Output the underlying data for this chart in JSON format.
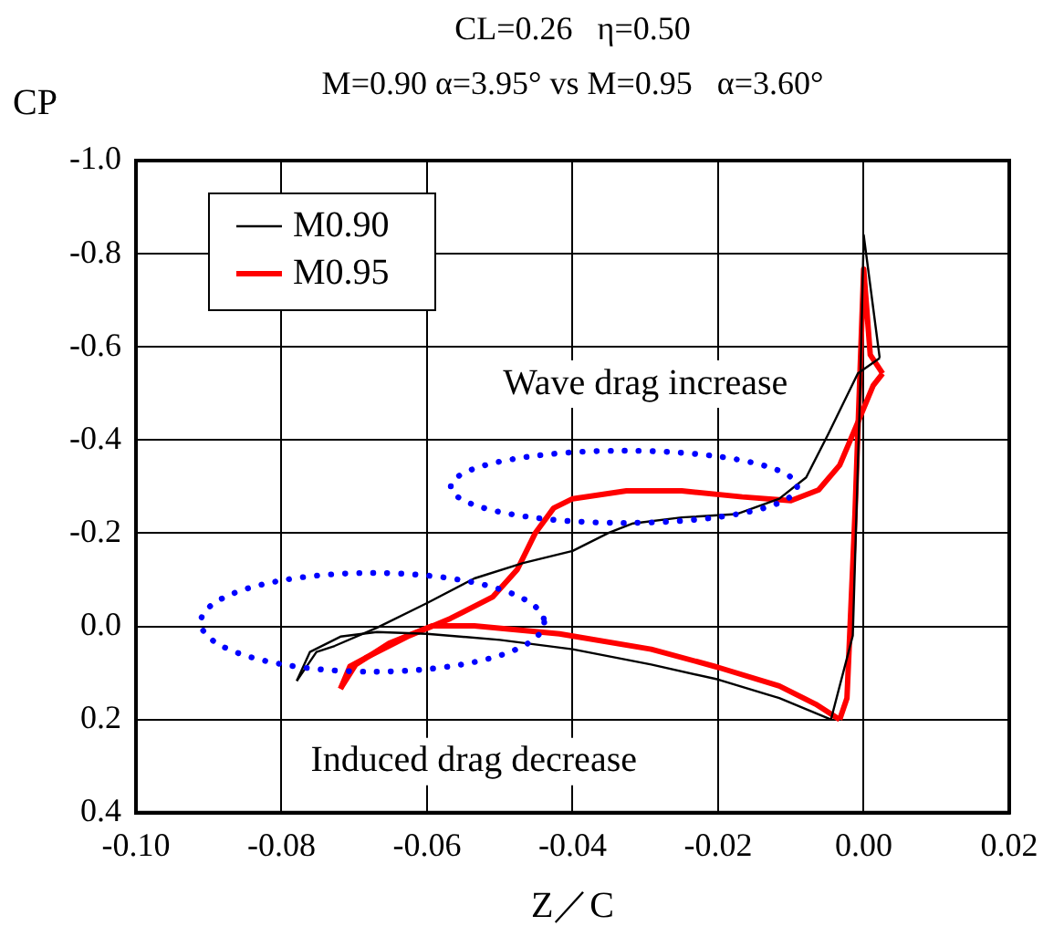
{
  "chart_data": {
    "type": "line",
    "title": "CL=0.26   η=0.50",
    "subtitle": "M=0.90 α=3.95° vs M=0.95   α=3.60°",
    "xlabel": "Z／C",
    "ylabel": "CP",
    "xlim": [
      -0.1,
      0.02
    ],
    "xticks": [
      {
        "value": -0.1,
        "label": "-0.10"
      },
      {
        "value": -0.08,
        "label": "-0.08"
      },
      {
        "value": -0.06,
        "label": "-0.06"
      },
      {
        "value": -0.04,
        "label": "-0.04"
      },
      {
        "value": -0.02,
        "label": "-0.02"
      },
      {
        "value": 0,
        "label": "0.00"
      },
      {
        "value": 0.02,
        "label": "0.02"
      }
    ],
    "ylim": [
      0.4,
      -1.0
    ],
    "yticks": [
      {
        "value": -1.0,
        "label": "-1.0"
      },
      {
        "value": -0.8,
        "label": "-0.8"
      },
      {
        "value": -0.6,
        "label": "-0.6"
      },
      {
        "value": -0.4,
        "label": "-0.4"
      },
      {
        "value": -0.2,
        "label": "-0.2"
      },
      {
        "value": 0,
        "label": "0.0"
      },
      {
        "value": 0.2,
        "label": "0.2"
      },
      {
        "value": 0.4,
        "label": "0.4"
      }
    ],
    "grid": true,
    "legend": "top left",
    "marker": "none",
    "line_style": "solid",
    "annotations": [
      "Wave drag increase",
      "Induced drag decrease"
    ],
    "series": [
      {
        "name": "M0.90",
        "color": "#000000",
        "x": [
          0.0022,
          -0.0008,
          -0.0049,
          -0.0079,
          -0.0116,
          -0.0175,
          -0.025,
          -0.0317,
          -0.035,
          -0.04,
          -0.0468,
          -0.0535,
          -0.06,
          -0.0669,
          -0.0727,
          -0.0752,
          -0.0779
        ],
        "values": [
          -0.576,
          -0.543,
          -0.412,
          -0.32,
          -0.274,
          -0.241,
          -0.234,
          -0.221,
          -0.201,
          -0.162,
          -0.136,
          -0.103,
          -0.05,
          0.003,
          0.042,
          0.055,
          0.117
        ]
      },
      {
        "color": "#000000",
        "x": [
          -0.0779,
          -0.0761,
          -0.0719,
          -0.0669,
          -0.06,
          -0.05,
          -0.04,
          -0.0292,
          -0.02,
          -0.0116,
          -0.0045
        ],
        "values": [
          0.117,
          0.055,
          0.022,
          0.012,
          0.016,
          0.029,
          0.049,
          0.082,
          0.114,
          0.154,
          0.2
        ]
      },
      {
        "color": "#000000",
        "x": [
          -0.0045,
          -0.0015,
          -0.0005,
          0,
          0.0022
        ],
        "values": [
          0.2,
          0.02,
          -0.5,
          -0.84,
          -0.576
        ]
      },
      {
        "name": "M0.95",
        "color": "#ff0000",
        "x": [
          0.0026,
          0.0013,
          -0.0008,
          -0.0033,
          -0.0062,
          -0.01,
          -0.0167,
          -0.025,
          -0.0326,
          -0.04,
          -0.0426,
          -0.0451,
          -0.0476,
          -0.051,
          -0.0568,
          -0.0627,
          -0.0685,
          -0.0706,
          -0.0719
        ],
        "values": [
          -0.543,
          -0.517,
          -0.438,
          -0.346,
          -0.293,
          -0.27,
          -0.278,
          -0.291,
          -0.291,
          -0.274,
          -0.254,
          -0.201,
          -0.122,
          -0.063,
          -0.017,
          0.022,
          0.068,
          0.086,
          0.134
        ]
      },
      {
        "color": "#ff0000",
        "x": [
          -0.0719,
          -0.0698,
          -0.0652,
          -0.0593,
          -0.0535,
          -0.0418,
          -0.0292,
          -0.02,
          -0.0116,
          -0.0066,
          -0.0033
        ],
        "values": [
          0.134,
          0.082,
          0.036,
          -0.001,
          -0.001,
          0.016,
          0.049,
          0.088,
          0.128,
          0.167,
          0.2
        ]
      },
      {
        "color": "#ff0000",
        "x": [
          -0.0033,
          -0.0023,
          -0.0012,
          -0.0003,
          0,
          0.0009,
          0.0026
        ],
        "values": [
          0.2,
          0.154,
          -0.241,
          -0.636,
          -0.767,
          -0.583,
          -0.543
        ]
      }
    ]
  }
}
